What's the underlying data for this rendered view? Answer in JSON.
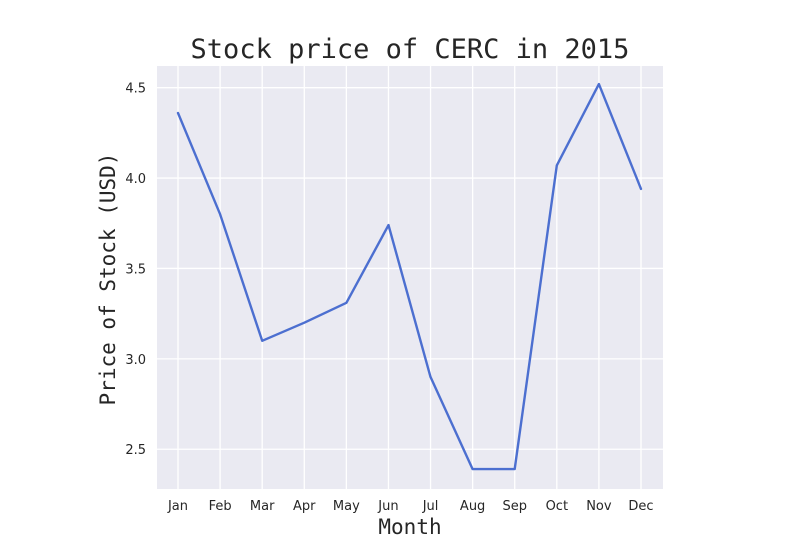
{
  "chart_data": {
    "type": "line",
    "title": "Stock price of CERC in 2015",
    "xlabel": "Month",
    "ylabel": "Price of Stock (USD)",
    "categories": [
      "Jan",
      "Feb",
      "Mar",
      "Apr",
      "May",
      "Jun",
      "Jul",
      "Aug",
      "Sep",
      "Oct",
      "Nov",
      "Dec"
    ],
    "series": [
      {
        "values": [
          4.36,
          3.8,
          3.1,
          3.2,
          3.31,
          3.74,
          2.9,
          2.39,
          2.39,
          4.07,
          4.52,
          3.94
        ],
        "color": "#4c6fd0"
      }
    ],
    "ylim": [
      2.28,
      4.62
    ],
    "yticks": [
      2.5,
      3.0,
      3.5,
      4.0,
      4.5
    ],
    "ytick_labels": [
      "2.5",
      "3.0",
      "3.5",
      "4.0",
      "4.5"
    ],
    "grid": true,
    "legend": false,
    "background_color": "#eaeaf2",
    "grid_color": "#ffffff"
  }
}
